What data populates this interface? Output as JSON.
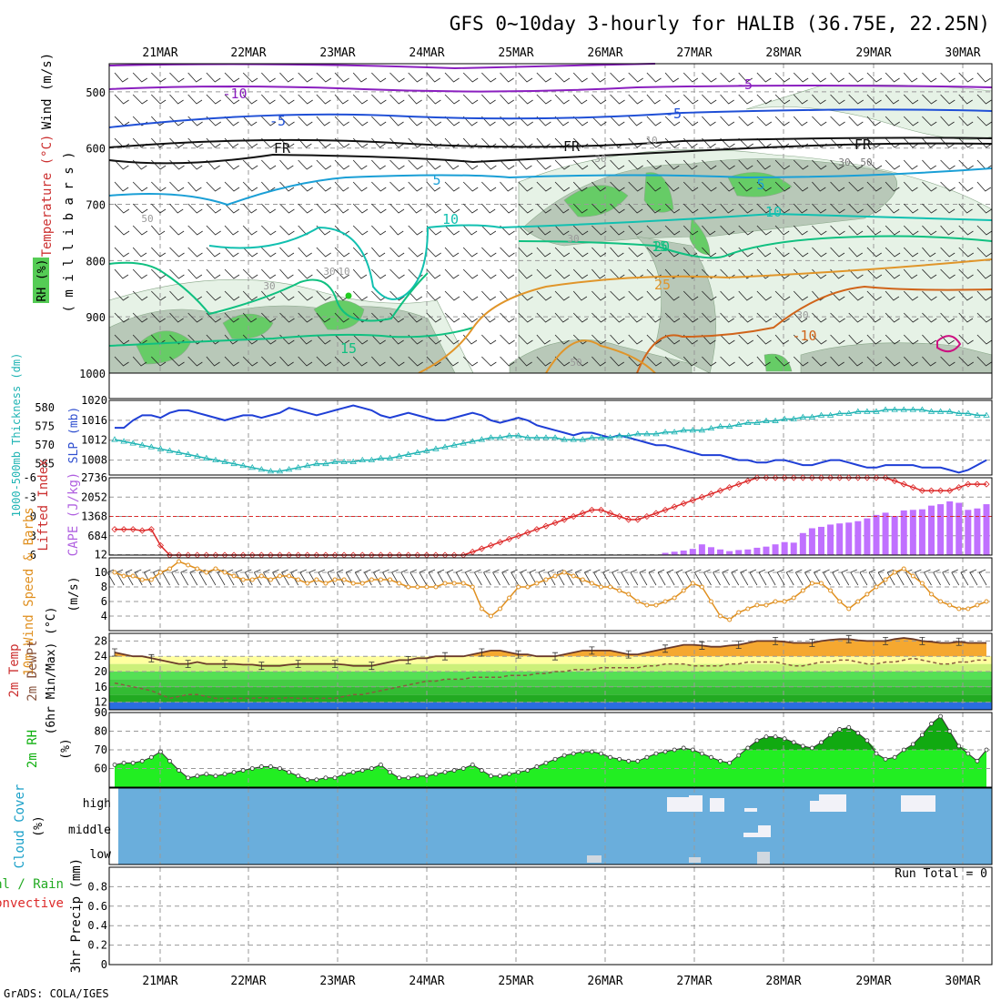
{
  "title": "GFS 0~10day 3-hourly for HALIB (36.75E, 22.25N)",
  "credit": "GrADS: COLA/IGES",
  "run_total_label": "Run Total = 0",
  "dates": [
    "21MAR",
    "22MAR",
    "23MAR",
    "24MAR",
    "25MAR",
    "26MAR",
    "27MAR",
    "28MAR",
    "29MAR",
    "30MAR"
  ],
  "colors": {
    "rh_fill_light": "#e6f2e6",
    "rh_fill_mid": "#b8c8b8",
    "rh_fill_dark": "#66cc66",
    "temp_purple": "#8a1fbf",
    "temp_blue": "#1f4fd6",
    "temp_cyan": "#1a9fd6",
    "temp_teal": "#11c0b0",
    "temp_green": "#10c080",
    "temp_orange": "#e0952a",
    "temp_darkorange": "#d0641a",
    "slp": "#1f3fd6",
    "thickness": "#20b4b4",
    "lifted": "#dd2a2a",
    "cape": "#c070ff",
    "wind": "#e09020",
    "temp_max_fill": "#f5a830",
    "dewpt": "#8a5a40",
    "rh_line": "#10b010",
    "cloud_bg": "#6aaedc",
    "cloud_bar": "#f2f2f8",
    "cloud_low_bar": "#d0d8e0"
  },
  "chart_data": [
    {
      "id": "upper_air",
      "type": "contour",
      "ylabel_parts": [
        "Wind (m/s)",
        "Temperature (°C)",
        "RH (%)",
        "( m i l l i b a r s )"
      ],
      "y_ticks": [
        500,
        600,
        700,
        800,
        900,
        1000
      ],
      "ylim": [
        450,
        1000
      ],
      "contour_labels": [
        "-10",
        "-5",
        "FR",
        "-5",
        "FR",
        "5",
        "10",
        "15",
        "20",
        "25",
        "-10",
        "-5",
        "FR",
        "5",
        "10",
        "15",
        "30",
        "50",
        "10",
        "30",
        "50",
        "30",
        "30",
        "50",
        "10",
        "30",
        "30"
      ]
    },
    {
      "id": "slp_thickness",
      "type": "line",
      "ylabel_left": "1000-500mb Thickness (dm)",
      "ylabel_right": "SLP (mb)",
      "left_ticks": [
        565,
        570,
        575,
        580
      ],
      "left_lim": [
        562,
        582
      ],
      "right_ticks": [
        1008,
        1012,
        1016,
        1020
      ],
      "right_lim": [
        1005,
        1020
      ],
      "series": [
        {
          "name": "SLP",
          "values": [
            1014.5,
            1014.5,
            1016,
            1017,
            1017,
            1016.5,
            1017.5,
            1018,
            1018,
            1017.5,
            1017,
            1016.5,
            1016,
            1016.5,
            1017,
            1017,
            1016.5,
            1017,
            1017.5,
            1018.5,
            1018,
            1017.5,
            1017,
            1017.5,
            1018,
            1018.5,
            1019,
            1018.5,
            1018,
            1017,
            1016.5,
            1017,
            1017.5,
            1017,
            1016.5,
            1016,
            1016,
            1016.5,
            1017,
            1017.5,
            1017,
            1016,
            1015.5,
            1016,
            1016.5,
            1016,
            1015,
            1014.5,
            1014,
            1013.5,
            1013,
            1013.5,
            1013.5,
            1013,
            1012.5,
            1013,
            1012.5,
            1012,
            1011.5,
            1011,
            1011,
            1010.5,
            1010,
            1009.5,
            1009,
            1009,
            1009,
            1008.5,
            1008,
            1008,
            1007.5,
            1007.5,
            1008,
            1008,
            1007.5,
            1007,
            1007,
            1007.5,
            1008,
            1008,
            1007.5,
            1007,
            1006.5,
            1006.5,
            1007,
            1007,
            1007,
            1007,
            1006.5,
            1006.5,
            1006.5,
            1006,
            1005.5,
            1006,
            1007,
            1008
          ]
        },
        {
          "name": "Thickness",
          "values": [
            571.5,
            571,
            570.5,
            570,
            569.5,
            569,
            568.5,
            568,
            567.5,
            567,
            566.5,
            566,
            565.5,
            565,
            564.5,
            564,
            563.5,
            563,
            563,
            563.5,
            564,
            564.5,
            565,
            565,
            565.5,
            565.5,
            565.5,
            566,
            566,
            566.5,
            566.5,
            567,
            567.5,
            568,
            568.5,
            569,
            569.5,
            570,
            570.5,
            571,
            571.5,
            572,
            572,
            572.5,
            572.5,
            572,
            572,
            572,
            572,
            571.5,
            571.5,
            571.5,
            572,
            572,
            572,
            572.5,
            572.5,
            573,
            573,
            573,
            573.5,
            573.5,
            574,
            574,
            574,
            574.5,
            575,
            575,
            575.5,
            576,
            576,
            576.5,
            576.5,
            577,
            577,
            577.5,
            577.5,
            578,
            578,
            578.5,
            578.5,
            579,
            579,
            579,
            579.5,
            579.5,
            579.5,
            579.5,
            579.5,
            579,
            579,
            579,
            578.5,
            578.5,
            578,
            578
          ]
        }
      ]
    },
    {
      "id": "lifted_cape",
      "type": "bar+line",
      "ylabel_left": "Lifted Index",
      "ylabel_right": "CAPE (J/kg)",
      "left_ticks": [
        -6,
        -3,
        0,
        3,
        6
      ],
      "left_lim": [
        -6,
        6
      ],
      "right_ticks": [
        12,
        684,
        1368,
        2052,
        2736
      ],
      "right_lim": [
        0,
        2736
      ],
      "series": [
        {
          "name": "Lifted Index",
          "values": [
            2,
            2,
            2,
            2.2,
            2,
            4.5,
            7,
            7,
            7,
            7,
            7,
            7,
            7,
            7,
            7,
            7,
            7,
            7,
            7,
            7,
            7,
            7,
            7,
            7,
            7,
            7,
            7,
            7,
            7,
            7,
            7,
            7,
            7,
            7,
            7,
            7,
            7,
            7,
            6,
            5.5,
            5,
            4.5,
            4,
            3.5,
            3,
            2.5,
            2,
            1.5,
            1,
            0.5,
            0,
            -0.5,
            -1,
            -1,
            -0.5,
            0,
            0.5,
            0.5,
            0,
            -0.5,
            -1,
            -1.5,
            -2,
            -2.5,
            -3,
            -3.5,
            -4,
            -4.5,
            -5,
            -5.5,
            -6,
            -6,
            -6.2,
            -6,
            -6,
            -6,
            -6,
            -6,
            -6,
            -6,
            -6,
            -6,
            -6,
            -6,
            -6,
            -5.5,
            -5,
            -4.5,
            -4,
            -4,
            -4,
            -4,
            -4.5,
            -5,
            -5,
            -5
          ]
        },
        {
          "name": "CAPE",
          "values": [
            0,
            0,
            0,
            0,
            0,
            0,
            0,
            0,
            0,
            0,
            0,
            0,
            0,
            0,
            0,
            0,
            0,
            0,
            0,
            0,
            0,
            0,
            0,
            0,
            0,
            0,
            0,
            0,
            0,
            0,
            0,
            0,
            0,
            0,
            0,
            0,
            0,
            0,
            0,
            0,
            0,
            0,
            0,
            0,
            0,
            0,
            0,
            0,
            0,
            0,
            0,
            0,
            0,
            0,
            0,
            0,
            0,
            0,
            0,
            0,
            80,
            120,
            160,
            220,
            380,
            280,
            200,
            140,
            180,
            200,
            260,
            300,
            380,
            460,
            440,
            780,
            950,
            1000,
            1080,
            1120,
            1150,
            1200,
            1300,
            1420,
            1500,
            1380,
            1580,
            1600,
            1620,
            1750,
            1800,
            1900,
            1850,
            1600,
            1650,
            1800
          ]
        }
      ]
    },
    {
      "id": "wind10m",
      "type": "line",
      "ylabel": [
        "10m Wind Speed & Barbs",
        "(m/s)"
      ],
      "y_ticks": [
        4,
        6,
        8,
        10
      ],
      "ylim": [
        2,
        12
      ],
      "series": [
        {
          "name": "10m Wind Speed",
          "values": [
            10,
            9.5,
            9.5,
            9,
            9,
            10,
            10.5,
            11.5,
            11,
            10.5,
            10,
            10.5,
            10,
            9.5,
            9,
            9,
            9.5,
            9,
            9.5,
            9.5,
            9,
            8.5,
            9,
            8.5,
            9,
            9,
            8.5,
            8.5,
            9,
            9,
            9,
            8.5,
            8,
            8,
            8,
            8,
            8.5,
            8.5,
            8.5,
            8,
            5,
            4,
            5,
            6.5,
            8,
            8,
            8.5,
            9,
            9.5,
            10,
            9.5,
            9,
            8.5,
            8,
            8,
            7.5,
            7,
            6,
            5.5,
            5.5,
            6,
            6.5,
            7.5,
            8.5,
            8,
            6,
            4,
            3.5,
            4.5,
            5,
            5.5,
            5.5,
            6,
            6,
            6.5,
            7.5,
            8.5,
            8.5,
            7.5,
            6,
            5,
            6,
            7,
            8,
            9,
            10,
            10.5,
            9.5,
            8.5,
            7,
            6,
            5.5,
            5,
            5,
            5.5,
            6
          ]
        }
      ]
    },
    {
      "id": "temp2m",
      "type": "area",
      "ylabel": [
        "2m Temp",
        "2m DewPt",
        "(6hr Min/Max) (°C)"
      ],
      "y_ticks": [
        12,
        16,
        20,
        24,
        28
      ],
      "ylim": [
        10,
        30
      ],
      "series": [
        {
          "name": "2m Temp",
          "values": [
            25,
            24.5,
            24,
            24,
            23.5,
            23,
            22.5,
            22,
            22,
            22.5,
            22,
            22,
            22,
            22,
            21.8,
            21.8,
            21.5,
            21.5,
            21.5,
            21.8,
            22,
            22,
            22,
            22,
            22,
            21.8,
            21.5,
            21.5,
            21.5,
            22,
            22.5,
            23,
            23,
            23.5,
            23.5,
            24,
            24,
            24,
            24,
            24.5,
            25,
            25.5,
            25.5,
            25,
            24.5,
            24.5,
            24,
            24,
            24,
            24.5,
            25,
            25.5,
            25.5,
            25.5,
            25.5,
            25,
            24.5,
            24.5,
            25,
            25.5,
            26,
            26.5,
            27,
            27,
            26.8,
            26.5,
            26.5,
            26.8,
            27,
            27.5,
            28,
            28,
            28,
            27.8,
            27.5,
            27.5,
            27.5,
            28,
            28.3,
            28.5,
            28.5,
            28.2,
            28,
            28,
            28,
            28.5,
            28.8,
            28.5,
            28,
            27.8,
            27.5,
            27.5,
            27.8,
            27.5,
            27.5,
            27.5
          ]
        },
        {
          "name": "2m DewPt",
          "values": [
            17,
            16.5,
            16,
            15.5,
            15,
            14,
            13,
            13.5,
            14,
            14,
            13.5,
            13,
            13,
            13,
            13,
            13,
            13.2,
            13,
            13,
            13.2,
            13,
            13,
            13,
            13,
            13,
            13.5,
            14,
            14,
            14.5,
            15,
            15.5,
            16,
            16.5,
            17,
            17.5,
            17.5,
            18,
            18,
            18,
            18.5,
            18.5,
            18.5,
            18.5,
            19,
            19,
            19,
            19.5,
            19.5,
            20,
            20,
            20.5,
            20.5,
            20.5,
            21,
            21,
            21,
            21,
            21,
            21.5,
            21.5,
            22,
            22,
            22,
            21.5,
            21.5,
            21.5,
            21.5,
            22,
            22,
            22.5,
            22.5,
            22.5,
            22.5,
            22,
            21.5,
            21.5,
            22,
            22.5,
            22.5,
            23,
            23,
            22.5,
            22,
            22,
            22.5,
            22.5,
            23,
            23.5,
            23,
            22.5,
            22,
            22,
            22.5,
            22.5,
            23,
            23
          ]
        }
      ]
    },
    {
      "id": "rh2m",
      "type": "area",
      "ylabel": [
        "2m RH",
        "(%)"
      ],
      "y_ticks": [
        60,
        70,
        80,
        90
      ],
      "ylim": [
        50,
        90
      ],
      "series": [
        {
          "name": "2m RH",
          "values": [
            62,
            63,
            63,
            64,
            66,
            69,
            64,
            59,
            55,
            56,
            57,
            56,
            57,
            58,
            59,
            60,
            61,
            61,
            60,
            58,
            56,
            54,
            54,
            55,
            55,
            57,
            58,
            59,
            60,
            62,
            58,
            55,
            55,
            56,
            56,
            57,
            58,
            59,
            60,
            62,
            59,
            56,
            56,
            57,
            58,
            59,
            61,
            63,
            65,
            67,
            68,
            69,
            69,
            68,
            66,
            65,
            64,
            64,
            66,
            68,
            69,
            70,
            71,
            70,
            68,
            66,
            64,
            63,
            67,
            71,
            75,
            77,
            77,
            76,
            74,
            72,
            71,
            74,
            78,
            81,
            82,
            79,
            75,
            68,
            65,
            66,
            70,
            73,
            78,
            84,
            88,
            80,
            72,
            68,
            64,
            70
          ]
        }
      ]
    },
    {
      "id": "cloud_cover",
      "type": "bar",
      "ylabel": [
        "Cloud Cover",
        "(%)"
      ],
      "category_labels": [
        "high",
        "middle",
        "low"
      ]
    },
    {
      "id": "precip",
      "type": "bar",
      "ylabel": [
        "3hr Precip (mm)"
      ],
      "legend": [
        "Total / Rain",
        "Convective"
      ],
      "y_ticks": [
        0,
        0.2,
        0.4,
        0.6,
        0.8
      ],
      "ylim": [
        0,
        1.0
      ],
      "values": []
    }
  ]
}
